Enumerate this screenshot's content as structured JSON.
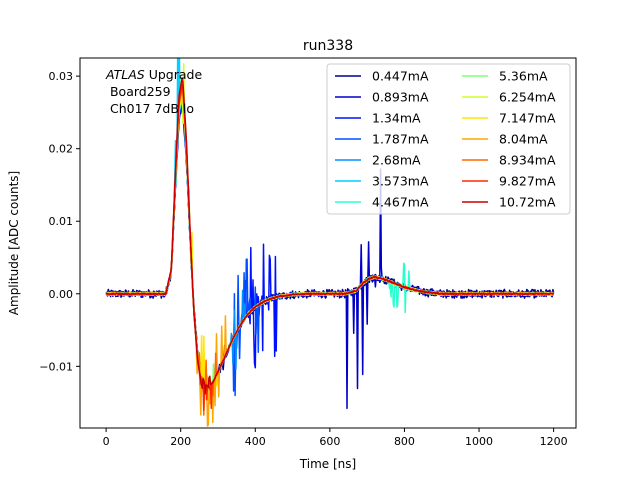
{
  "chart_data": {
    "type": "line",
    "title": "run338",
    "xlabel": "Time [ns]",
    "ylabel": "Amplitude [ADC counts]",
    "xlim": [
      -70,
      1260
    ],
    "ylim": [
      -0.0185,
      0.0325
    ],
    "xticks": [
      0,
      200,
      400,
      600,
      800,
      1000,
      1200
    ],
    "yticks": [
      -0.01,
      0.0,
      0.01,
      0.02,
      0.03
    ],
    "ytick_labels": [
      "−0.01",
      "0.00",
      "0.01",
      "0.02",
      "0.03"
    ],
    "grid": false,
    "legend_position": "top-right",
    "annotations": {
      "line1_italic": "ATLAS",
      "line1_rest": " Upgrade",
      "line2": " Board259",
      "line3": " Ch017 7dB lo"
    },
    "pulse_shape": {
      "x": [
        0,
        160,
        175,
        185,
        195,
        205,
        215,
        225,
        235,
        245,
        255,
        265,
        275,
        285,
        300,
        320,
        340,
        360,
        380,
        400,
        430,
        460,
        500,
        550,
        600,
        640,
        670,
        690,
        705,
        720,
        740,
        760,
        780,
        800,
        830,
        860,
        900,
        1000,
        1100,
        1200
      ],
      "y": [
        0,
        0,
        0.003,
        0.014,
        0.024,
        0.0265,
        0.019,
        0.008,
        -0.002,
        -0.008,
        -0.011,
        -0.0125,
        -0.0128,
        -0.0123,
        -0.0108,
        -0.0085,
        -0.0062,
        -0.0043,
        -0.0028,
        -0.0018,
        -0.0009,
        -0.0004,
        -0.0001,
        0,
        0,
        0,
        0.0004,
        0.0015,
        0.0021,
        0.0023,
        0.0021,
        0.0017,
        0.0013,
        0.0009,
        0.0005,
        0.0002,
        0,
        0,
        0,
        0
      ]
    },
    "series": [
      {
        "name": "0.447mA",
        "color": "#00008f",
        "peak": 0.026,
        "noise": 0.0006,
        "spike_region": [
          300,
          320
        ],
        "spike_depth": 0.002
      },
      {
        "name": "0.893mA",
        "color": "#0000c8",
        "peak": 0.0265,
        "noise": 0.0004,
        "spike_region": [
          640,
          740
        ],
        "spike_depth": 0.016
      },
      {
        "name": "1.34mA",
        "color": "#0010ff",
        "peak": 0.0268,
        "noise": 0.0003,
        "spike_region": [
          370,
          460
        ],
        "spike_depth": 0.009
      },
      {
        "name": "1.787mA",
        "color": "#0050ff",
        "peak": 0.027,
        "noise": 0.0002,
        "spike_region": [
          340,
          420
        ],
        "spike_depth": 0.01
      },
      {
        "name": "2.68mA",
        "color": "#0090ff",
        "peak": 0.0272,
        "noise": 0.0002,
        "spike_region": [
          330,
          380
        ],
        "spike_depth": 0.008
      },
      {
        "name": "3.573mA",
        "color": "#00d0ff",
        "peak": 0.0275,
        "noise": 0.0002,
        "spike_region": [
          180,
          200
        ],
        "spike_depth": 0.012
      },
      {
        "name": "4.467mA",
        "color": "#29ffce",
        "peak": 0.0276,
        "noise": 0.0002,
        "spike_region": [
          760,
          820
        ],
        "spike_depth": 0.004
      },
      {
        "name": "5.36mA",
        "color": "#7dff7a",
        "peak": 0.0278,
        "noise": 0.0002,
        "spike_region": [
          280,
          300
        ],
        "spike_depth": 0.003
      },
      {
        "name": "6.254mA",
        "color": "#ceff29",
        "peak": 0.028,
        "noise": 0.0002,
        "spike_region": [
          200,
          230
        ],
        "spike_depth": 0.006
      },
      {
        "name": "7.147mA",
        "color": "#ffe500",
        "peak": 0.0282,
        "noise": 0.0002,
        "spike_region": [
          220,
          300
        ],
        "spike_depth": 0.007
      },
      {
        "name": "8.04mA",
        "color": "#ffa700",
        "peak": 0.0285,
        "noise": 0.0001,
        "spike_region": [
          240,
          320
        ],
        "spike_depth": 0.006
      },
      {
        "name": "8.934mA",
        "color": "#ff6800",
        "peak": 0.0287,
        "noise": 0.0001,
        "spike_region": [
          250,
          300
        ],
        "spike_depth": 0.005
      },
      {
        "name": "9.827mA",
        "color": "#ff2900",
        "peak": 0.029,
        "noise": 0.0001,
        "spike_region": [
          260,
          290
        ],
        "spike_depth": 0.004
      },
      {
        "name": "10.72mA",
        "color": "#c80000",
        "peak": 0.03,
        "noise": 0.0001,
        "spike_region": [
          265,
          285
        ],
        "spike_depth": 0.002
      }
    ]
  }
}
